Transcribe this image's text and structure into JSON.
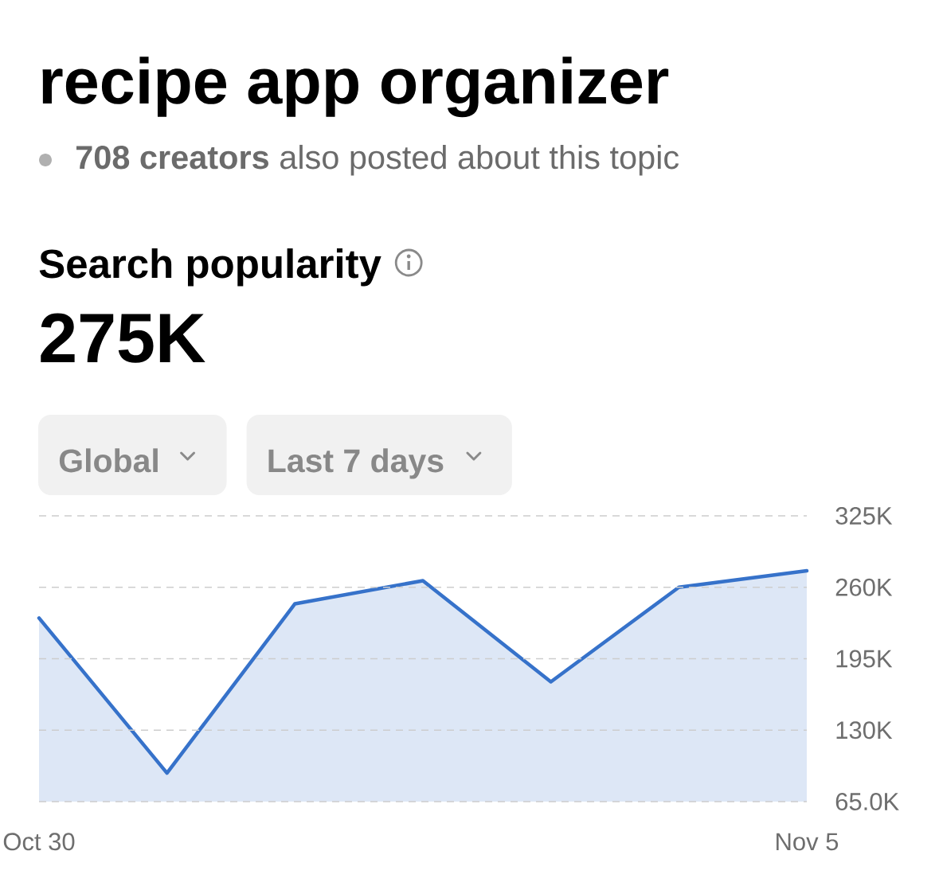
{
  "chart_data": {
    "type": "area",
    "title": "recipe app organizer",
    "subtitle": "**708 creators** also posted about this topic",
    "annotations": [
      "Search popularity",
      "275K",
      "Global",
      "Last 7 days"
    ],
    "categories": [
      "Oct 30",
      null,
      null,
      null,
      null,
      null,
      "Nov 5"
    ],
    "series": [
      {
        "color": "#3672ca",
        "values": [
          232000,
          91000,
          245000,
          266000,
          174000,
          260000,
          275000
        ]
      }
    ],
    "ylim": [
      65000,
      325000
    ],
    "yticks": [
      {
        "value": 65000,
        "label": "65.0K"
      },
      {
        "value": 130000,
        "label": "130K"
      },
      {
        "value": 195000,
        "label": "195K"
      },
      {
        "value": 260000,
        "label": "260K"
      },
      {
        "value": 325000,
        "label": "325K"
      }
    ],
    "grid": "y"
  }
}
